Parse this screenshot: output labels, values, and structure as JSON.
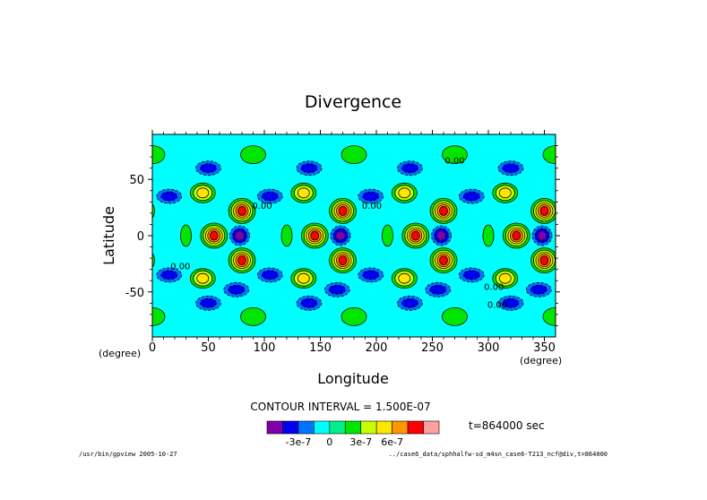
{
  "chart_data": {
    "type": "heatmap",
    "title": "Divergence",
    "xlabel": "Longitude",
    "ylabel": "Latitude",
    "x_unit": "(degree)",
    "y_unit": "(degree)",
    "xlim": [
      0,
      360
    ],
    "ylim": [
      -90,
      90
    ],
    "x_ticks": [
      "0",
      "50",
      "100",
      "150",
      "200",
      "250",
      "300",
      "350"
    ],
    "y_ticks": [
      "50",
      "0",
      "-50"
    ],
    "contour_interval_text": "CONTOUR INTERVAL = 1.500E-07",
    "colorbar_labels": [
      "-3e-7",
      "0",
      "3e-7",
      "6e-7"
    ],
    "colorbar_colors": [
      "#7f00a8",
      "#0000f0",
      "#0073ff",
      "#00ffff",
      "#00f08c",
      "#00e600",
      "#c8ff00",
      "#ffe600",
      "#ff9600",
      "#ff0000",
      "#ffa0a0"
    ],
    "time_text": "t=864000 sec",
    "footer_left": "/usr/bin/gpview  2005-10-27",
    "footer_right": "../case6_data/sphhalfw-sd_m4sn_case6-T213_ncf@div,t=864000",
    "contour_labels": [
      "0.00",
      "0.00",
      "0.00",
      "0.00",
      "0.00",
      "0.00"
    ],
    "wavenumber": 4,
    "contour_interval": 1.5e-07,
    "features": [
      {
        "kind": "max",
        "lon": 55,
        "lat": 0,
        "level": 9
      },
      {
        "kind": "min",
        "lon": 78,
        "lat": 0,
        "level": 0
      },
      {
        "kind": "max",
        "lon": 80,
        "lat": 22,
        "level": 9
      },
      {
        "kind": "max",
        "lon": 80,
        "lat": -22,
        "level": 9
      },
      {
        "kind": "max",
        "lon": 45,
        "lat": 38,
        "level": 7
      },
      {
        "kind": "max",
        "lon": 45,
        "lat": -38,
        "level": 7
      },
      {
        "kind": "min",
        "lon": 15,
        "lat": 35,
        "level": 1
      },
      {
        "kind": "min",
        "lon": 15,
        "lat": -35,
        "level": 1
      },
      {
        "kind": "min",
        "lon": 50,
        "lat": 60,
        "level": 1
      },
      {
        "kind": "min",
        "lon": 50,
        "lat": -60,
        "level": 1
      },
      {
        "kind": "min",
        "lon": 75,
        "lat": -48,
        "level": 1
      },
      {
        "kind": "max",
        "lon": 30,
        "lat": 0,
        "level": 5
      },
      {
        "kind": "max",
        "lon": 0,
        "lat": 72,
        "level": 5
      },
      {
        "kind": "max",
        "lon": 0,
        "lat": -72,
        "level": 5
      }
    ]
  }
}
